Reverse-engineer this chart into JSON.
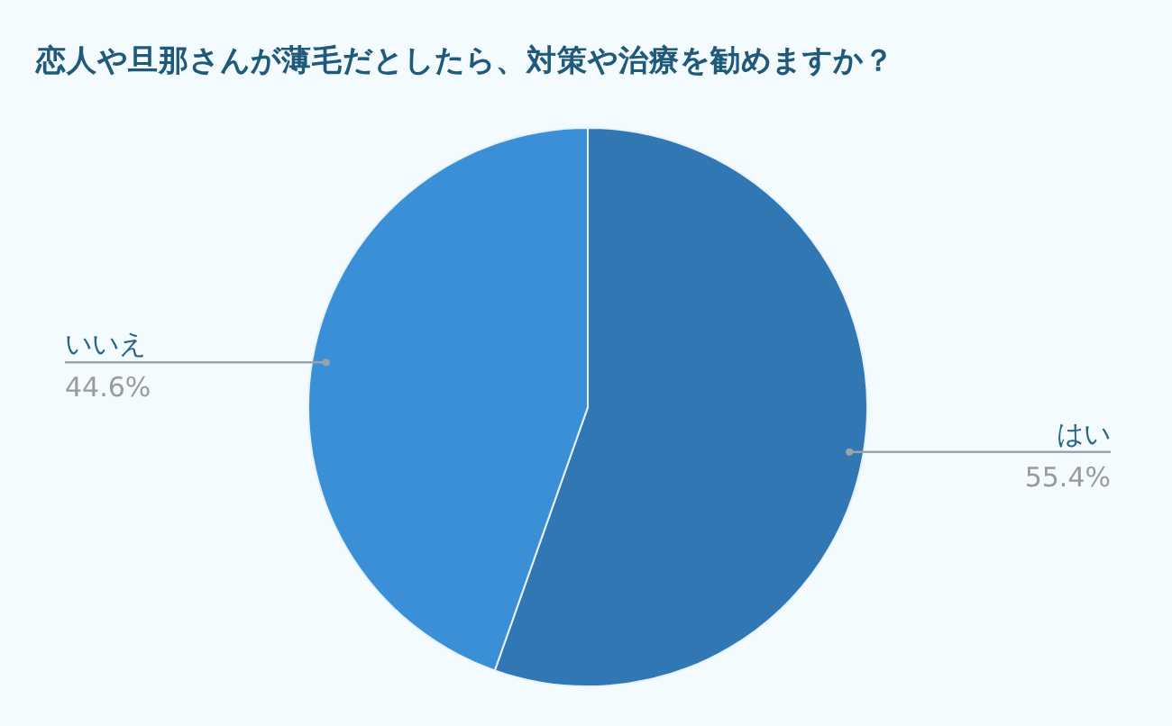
{
  "chart_data": {
    "type": "pie",
    "title": "恋人や旦那さんが薄毛だとしたら、対策や治療を勧めますか？",
    "categories": [
      "はい",
      "いいえ"
    ],
    "values": [
      55.4,
      44.6
    ],
    "colors": [
      "#3077b4",
      "#3a8fd6"
    ],
    "value_labels": [
      "55.4%",
      "44.6%"
    ],
    "legend": false
  }
}
